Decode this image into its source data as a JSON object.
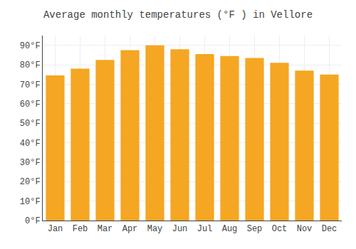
{
  "chart_data": {
    "type": "bar",
    "title": "Average monthly temperatures (°F ) in Vellore",
    "categories": [
      "Jan",
      "Feb",
      "Mar",
      "Apr",
      "May",
      "Jun",
      "Jul",
      "Aug",
      "Sep",
      "Oct",
      "Nov",
      "Dec"
    ],
    "values": [
      74.5,
      78.0,
      82.5,
      87.5,
      90.0,
      88.0,
      85.5,
      84.5,
      83.5,
      81.0,
      77.0,
      75.0
    ],
    "color": "#F5A623",
    "ylim": [
      0,
      95
    ],
    "yticks": [
      {
        "value": 0,
        "label": "0°F"
      },
      {
        "value": 10,
        "label": "10°F"
      },
      {
        "value": 20,
        "label": "20°F"
      },
      {
        "value": 30,
        "label": "30°F"
      },
      {
        "value": 40,
        "label": "40°F"
      },
      {
        "value": 50,
        "label": "50°F"
      },
      {
        "value": 60,
        "label": "60°F"
      },
      {
        "value": 70,
        "label": "70°F"
      },
      {
        "value": 80,
        "label": "80°F"
      },
      {
        "value": 90,
        "label": "90°F"
      }
    ],
    "grid": true
  }
}
